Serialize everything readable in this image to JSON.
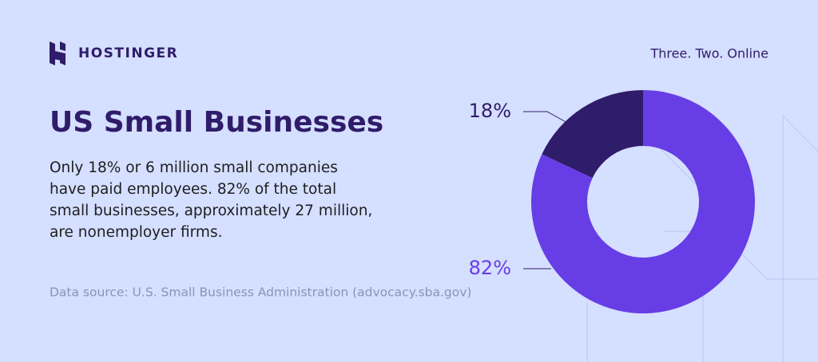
{
  "brand": "HOSTINGER",
  "tagline": "Three. Two. Online",
  "title": "US Small Businesses",
  "description": [
    "Only 18% or 6 million small companies",
    "have paid employees. 82% of the total",
    "small businesses, approximately 27 million,",
    "are nonemployer firms."
  ],
  "source": "Data source: U.S. Small Business Administration (advocacy.sba.gov)",
  "chart_data": {
    "type": "donut",
    "values": [
      18,
      82
    ],
    "value_labels": [
      "18%",
      "82%"
    ],
    "colors": [
      "#2f1c6a",
      "#673de6"
    ]
  }
}
